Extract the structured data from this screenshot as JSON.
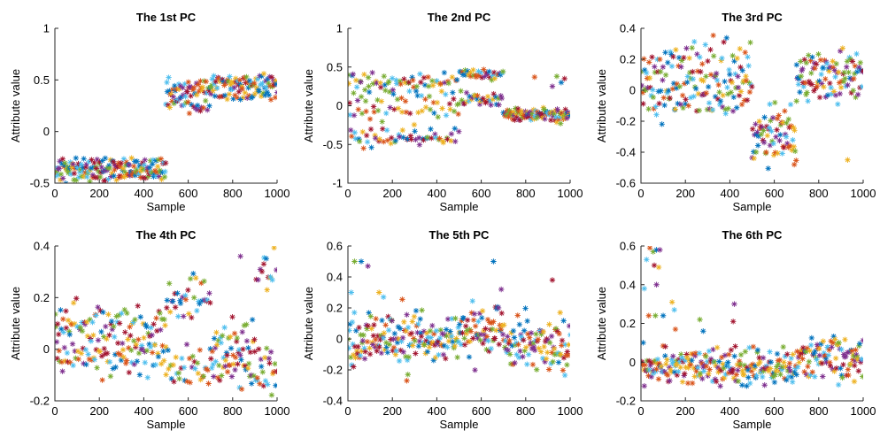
{
  "figure": {
    "background": "#ffffff"
  },
  "palette": [
    "#0072BD",
    "#D95319",
    "#EDB120",
    "#7E2F8E",
    "#77AC30",
    "#4DBEEE",
    "#A2142F"
  ],
  "chart_data": [
    {
      "type": "scatter",
      "title": "The 1st PC",
      "xlabel": "Sample",
      "ylabel": "Attribute value",
      "xlim": [
        0,
        1000
      ],
      "ylim": [
        -0.5,
        1
      ],
      "xticks": [
        0,
        200,
        400,
        600,
        800,
        1000
      ],
      "yticks": [
        -0.5,
        0,
        0.5,
        1
      ],
      "marker": "asterisk",
      "segments": [
        {
          "x": [
            1,
            499
          ],
          "bands": [
            -0.44,
            -0.39,
            -0.35,
            -0.3
          ],
          "spread": 0.025
        },
        {
          "x": [
            500,
            599
          ],
          "bands": [
            0.44,
            0.38,
            0.3
          ],
          "spread": 0.04
        },
        {
          "x": [
            600,
            699
          ],
          "bands": [
            0.44,
            0.38,
            0.25
          ],
          "spread": 0.04
        },
        {
          "x": [
            700,
            1000
          ],
          "bands": [
            0.5,
            0.46,
            0.36
          ],
          "spread": 0.03
        }
      ],
      "outliers": [
        [
          835,
          0.31
        ],
        [
          640,
          0.21
        ],
        [
          655,
          0.2
        ]
      ]
    },
    {
      "type": "scatter",
      "title": "The 2nd PC",
      "xlabel": "Sample",
      "ylabel": "Attribute value",
      "xlim": [
        0,
        1000
      ],
      "ylim": [
        -1,
        1
      ],
      "xticks": [
        0,
        200,
        400,
        600,
        800,
        1000
      ],
      "yticks": [
        -1,
        -0.5,
        0,
        0.5,
        1
      ],
      "marker": "asterisk",
      "segments": [
        {
          "x": [
            1,
            499
          ],
          "bands": [
            0.35,
            0.28,
            0.1,
            -0.08,
            -0.38,
            -0.45
          ],
          "spread": 0.05
        },
        {
          "x": [
            500,
            699
          ],
          "bands": [
            0.42,
            0.38,
            0.1,
            0.07
          ],
          "spread": 0.04
        },
        {
          "x": [
            700,
            1000
          ],
          "bands": [
            -0.08,
            -0.12,
            -0.15
          ],
          "spread": 0.03
        }
      ],
      "outliers": [
        [
          840,
          0.37
        ],
        [
          940,
          0.38
        ],
        [
          960,
          0.3
        ],
        [
          920,
          0.25
        ],
        [
          975,
          0.35
        ]
      ]
    },
    {
      "type": "scatter",
      "title": "The 3rd PC",
      "xlabel": "Sample",
      "ylabel": "Attribute value",
      "xlim": [
        0,
        1000
      ],
      "ylim": [
        -0.6,
        0.4
      ],
      "xticks": [
        0,
        200,
        400,
        600,
        800,
        1000
      ],
      "yticks": [
        -0.6,
        -0.4,
        -0.2,
        0,
        0.2,
        0.4
      ],
      "marker": "asterisk",
      "segments": [
        {
          "x": [
            1,
            499
          ],
          "bands": [
            0.2,
            0.1,
            0.0,
            -0.08
          ],
          "spread": 0.07
        },
        {
          "x": [
            500,
            699
          ],
          "bands": [
            -0.2,
            -0.3,
            -0.38
          ],
          "spread": 0.07
        },
        {
          "x": [
            700,
            1000
          ],
          "bands": [
            0.17,
            0.1,
            0.02
          ],
          "spread": 0.05
        }
      ],
      "outliers": [
        [
          930,
          -0.45
        ],
        [
          580,
          -0.09
        ],
        [
          690,
          -0.48
        ],
        [
          700,
          -0.07
        ]
      ]
    },
    {
      "type": "scatter",
      "title": "The 4th PC",
      "xlabel": "Sample",
      "ylabel": "Attribute value",
      "xlim": [
        0,
        1000
      ],
      "ylim": [
        -0.2,
        0.4
      ],
      "xticks": [
        0,
        200,
        400,
        600,
        800,
        1000
      ],
      "yticks": [
        -0.2,
        0,
        0.2,
        0.4
      ],
      "marker": "asterisk",
      "segments": [
        {
          "x": [
            1,
            499
          ],
          "bands": [
            0.12,
            0.06,
            0.0,
            -0.05
          ],
          "spread": 0.03
        },
        {
          "x": [
            500,
            699
          ],
          "bands": [
            0.22,
            0.17,
            -0.05,
            -0.1
          ],
          "spread": 0.03
        },
        {
          "x": [
            700,
            899
          ],
          "bands": [
            0.04,
            -0.02,
            -0.08
          ],
          "spread": 0.04
        },
        {
          "x": [
            900,
            1000
          ],
          "bands": [
            0.3,
            -0.05,
            -0.12
          ],
          "spread": 0.04
        }
      ],
      "outliers": [
        [
          835,
          0.36
        ],
        [
          940,
          0.33
        ],
        [
          955,
          0.23
        ],
        [
          970,
          0.28
        ]
      ]
    },
    {
      "type": "scatter",
      "title": "The 5th PC",
      "xlabel": "Sample",
      "ylabel": "Attribute value",
      "xlim": [
        0,
        1000
      ],
      "ylim": [
        -0.4,
        0.6
      ],
      "xticks": [
        0,
        200,
        400,
        600,
        800,
        1000
      ],
      "yticks": [
        -0.4,
        -0.2,
        0,
        0.2,
        0.4,
        0.6
      ],
      "marker": "asterisk",
      "segments": [
        {
          "x": [
            1,
            499
          ],
          "bands": [
            0.05,
            0.0,
            -0.05
          ],
          "spread": 0.07
        },
        {
          "x": [
            500,
            699
          ],
          "bands": [
            0.1,
            0.05,
            0.0
          ],
          "spread": 0.07
        },
        {
          "x": [
            700,
            1000
          ],
          "bands": [
            0.02,
            -0.05,
            -0.1
          ],
          "spread": 0.06
        }
      ],
      "outliers": [
        [
          30,
          0.5
        ],
        [
          60,
          0.5
        ],
        [
          90,
          0.47
        ],
        [
          25,
          -0.18
        ],
        [
          140,
          0.3
        ],
        [
          160,
          0.27
        ],
        [
          265,
          -0.27
        ],
        [
          270,
          -0.23
        ],
        [
          655,
          0.5
        ],
        [
          690,
          0.32
        ],
        [
          920,
          0.38
        ],
        [
          955,
          0.17
        ],
        [
          15,
          0.3
        ]
      ]
    },
    {
      "type": "scatter",
      "title": "The 6th PC",
      "xlabel": "Sample",
      "ylabel": "Attribute value",
      "xlim": [
        0,
        1000
      ],
      "ylim": [
        -0.2,
        0.6
      ],
      "xticks": [
        0,
        200,
        400,
        600,
        800,
        1000
      ],
      "yticks": [
        -0.2,
        0,
        0.2,
        0.4,
        0.6
      ],
      "marker": "asterisk",
      "segments": [
        {
          "x": [
            1,
            699
          ],
          "bands": [
            0.0,
            -0.03,
            -0.06
          ],
          "spread": 0.04
        },
        {
          "x": [
            700,
            1000
          ],
          "bands": [
            0.06,
            0.02,
            -0.02
          ],
          "spread": 0.04
        }
      ],
      "outliers": [
        [
          25,
          0.53
        ],
        [
          40,
          0.59
        ],
        [
          55,
          0.57
        ],
        [
          70,
          0.58
        ],
        [
          85,
          0.58
        ],
        [
          60,
          0.5
        ],
        [
          80,
          0.49
        ],
        [
          15,
          0.38
        ],
        [
          35,
          0.24
        ],
        [
          65,
          0.24
        ],
        [
          100,
          0.24
        ],
        [
          70,
          0.4
        ],
        [
          110,
          0.08
        ],
        [
          140,
          0.31
        ],
        [
          150,
          0.27
        ],
        [
          155,
          0.17
        ],
        [
          265,
          0.22
        ],
        [
          280,
          0.16
        ],
        [
          420,
          0.3
        ],
        [
          415,
          0.21
        ],
        [
          960,
          -0.1
        ]
      ]
    }
  ]
}
